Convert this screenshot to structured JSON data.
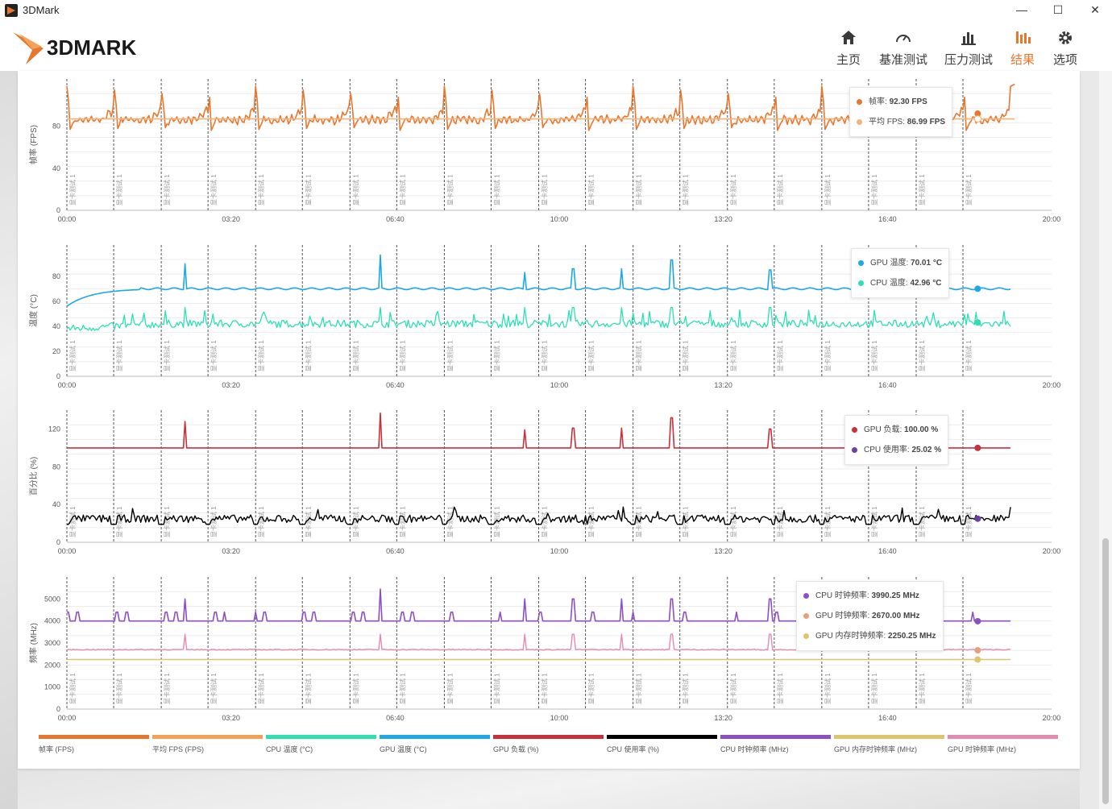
{
  "window": {
    "title": "3DMark",
    "minimize": "—",
    "maximize": "☐",
    "close": "✕"
  },
  "brand": {
    "logo_text": "3DMARK",
    "accent": "#e8772e"
  },
  "nav": [
    {
      "label": "主页",
      "icon": "home-icon"
    },
    {
      "label": "基准测试",
      "icon": "gauge-icon"
    },
    {
      "label": "压力测试",
      "icon": "bar-chart-icon"
    },
    {
      "label": "结果",
      "icon": "results-icon",
      "active": true
    },
    {
      "label": "选项",
      "icon": "gear-icon"
    }
  ],
  "x_ticks": [
    "00:00",
    "03:20",
    "06:40",
    "10:00",
    "13:20",
    "16:40",
    "20:00"
  ],
  "marker_label": "显卡测试 1",
  "marker_times": [
    0,
    57,
    115,
    172,
    230,
    287,
    345,
    402,
    460,
    517,
    575,
    632,
    690,
    747,
    805,
    862,
    920,
    977,
    1035,
    1092
  ],
  "charts": [
    {
      "id": "fps",
      "ylabel": "帧率 (FPS)",
      "yticks": [
        0,
        40,
        80
      ],
      "ymax": 125,
      "tooltip": [
        {
          "label": "帧率",
          "value": "92.30 FPS",
          "color": "#e8772e"
        },
        {
          "label": "平均 FPS",
          "value": "86.99 FPS",
          "color": "#f4b27a"
        }
      ]
    },
    {
      "id": "temp",
      "ylabel": "温度 (°C)",
      "yticks": [
        0,
        20,
        40,
        60,
        80
      ],
      "ymax": 105,
      "tooltip": [
        {
          "label": "GPU 温度",
          "value": "70.01 °C",
          "color": "#1da8e6"
        },
        {
          "label": "CPU 温度",
          "value": "42.96 °C",
          "color": "#2de0b4"
        }
      ]
    },
    {
      "id": "pct",
      "ylabel": "百分比 (%)",
      "yticks": [
        0,
        40,
        80,
        120
      ],
      "ymax": 140,
      "tooltip": [
        {
          "label": "GPU 负载",
          "value": "100.00 %",
          "color": "#c8303a"
        },
        {
          "label": "CPU 使用率",
          "value": "25.02 %",
          "color": "#6b3fa6"
        }
      ]
    },
    {
      "id": "freq",
      "ylabel": "频率 (MHz)",
      "yticks": [
        0,
        1000,
        2000,
        3000,
        4000,
        5000
      ],
      "ymax": 6000,
      "tooltip": [
        {
          "label": "CPU 时钟频率",
          "value": "3990.25 MHz",
          "color": "#8e4fc4"
        },
        {
          "label": "GPU 时钟频率",
          "value": "2670.00 MHz",
          "color": "#e8a07a"
        },
        {
          "label": "GPU 内存时钟频率",
          "value": "2250.25 MHz",
          "color": "#e0c46c"
        }
      ]
    }
  ],
  "chart_data": [
    {
      "type": "line",
      "title": "",
      "ylabel": "帧率 (FPS)",
      "xlabel": "",
      "xlim": [
        "00:00",
        "20:00"
      ],
      "ylim": [
        0,
        125
      ],
      "series": [
        {
          "name": "帧率 (FPS)",
          "color": "#e8772e",
          "approx_range": [
            73,
            120
          ],
          "last": 92.3
        },
        {
          "name": "平均 FPS (FPS)",
          "color": "#f4b27a",
          "values": [
            86.99
          ]
        }
      ]
    },
    {
      "type": "line",
      "title": "",
      "ylabel": "温度 (°C)",
      "xlabel": "",
      "xlim": [
        "00:00",
        "20:00"
      ],
      "ylim": [
        0,
        105
      ],
      "series": [
        {
          "name": "GPU 温度 (°C)",
          "color": "#1da8e6",
          "start": 56,
          "plateau": 70,
          "spikes": [
            90,
            97,
            83,
            86,
            86,
            93,
            85
          ],
          "last": 70.01
        },
        {
          "name": "CPU 温度 (°C)",
          "color": "#2de0b4",
          "approx_range": [
            34,
            60
          ],
          "last": 42.96
        }
      ]
    },
    {
      "type": "line",
      "title": "",
      "ylabel": "百分比 (%)",
      "xlabel": "",
      "xlim": [
        "00:00",
        "20:00"
      ],
      "ylim": [
        0,
        140
      ],
      "series": [
        {
          "name": "GPU 负载 (%)",
          "color": "#c8303a",
          "baseline": 100,
          "spikes": [
            128,
            137,
            119,
            121,
            121,
            132,
            120
          ],
          "last": 100.0
        },
        {
          "name": "CPU 使用率 (%)",
          "color": "#000000",
          "approx_range": [
            18,
            40
          ],
          "last": 25.02
        }
      ]
    },
    {
      "type": "line",
      "title": "",
      "ylabel": "频率 (MHz)",
      "xlabel": "",
      "xlim": [
        "00:00",
        "20:00"
      ],
      "ylim": [
        0,
        6000
      ],
      "series": [
        {
          "name": "CPU 时钟频率 (MHz)",
          "color": "#8e4fc4",
          "baseline": 4000,
          "bursts": 4400,
          "peak": 5450,
          "last": 3990.25
        },
        {
          "name": "GPU 时钟频率 (MHz)",
          "color": "#e38ab0",
          "baseline": 2700,
          "spike": 3400,
          "last": 2670.0
        },
        {
          "name": "GPU 内存时钟频率 (MHz)",
          "color": "#e0c46c",
          "baseline": 2250,
          "last": 2250.25
        }
      ]
    }
  ],
  "legend": [
    {
      "label": "帧率 (FPS)",
      "color": "#e8772e"
    },
    {
      "label": "平均 FPS (FPS)",
      "color": "#f4a15a"
    },
    {
      "label": "CPU 温度 (°C)",
      "color": "#2de0b4"
    },
    {
      "label": "GPU 温度 (°C)",
      "color": "#1da8e6"
    },
    {
      "label": "GPU 负载 (%)",
      "color": "#c8303a"
    },
    {
      "label": "CPU 使用率 (%)",
      "color": "#000000"
    },
    {
      "label": "CPU 时钟频率 (MHz)",
      "color": "#8e4fc4"
    },
    {
      "label": "GPU 内存时钟频率 (MHz)",
      "color": "#e0c46c"
    },
    {
      "label": "GPU 时钟频率 (MHz)",
      "color": "#e38ab0"
    }
  ]
}
